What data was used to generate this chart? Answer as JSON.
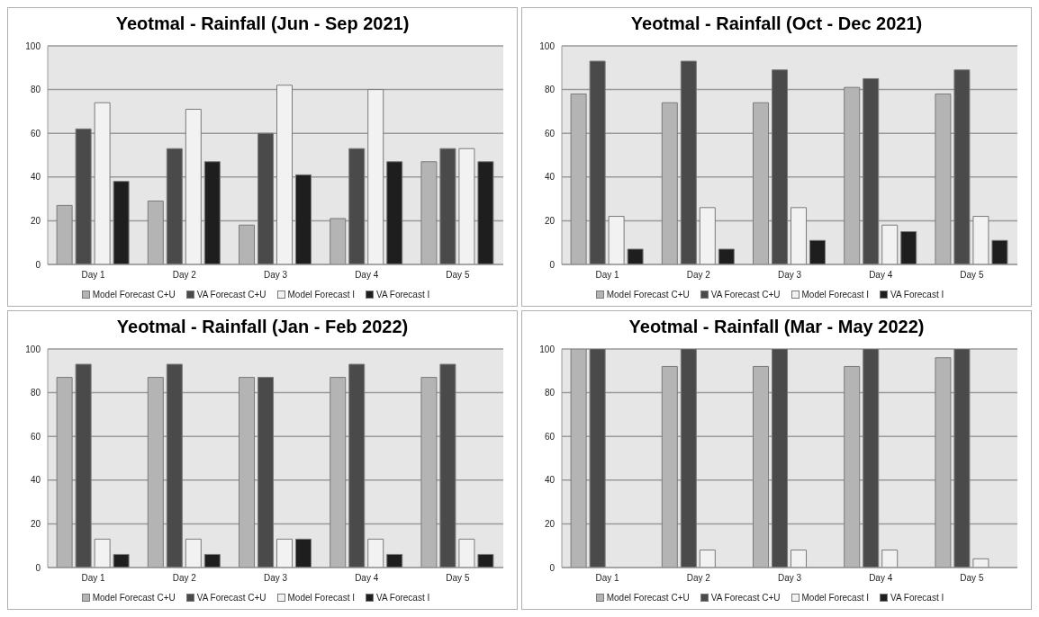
{
  "chart_data": [
    {
      "type": "bar",
      "title": "Yeotmal - Rainfall (Jun - Sep 2021)",
      "categories": [
        "Day 1",
        "Day 2",
        "Day 3",
        "Day 4",
        "Day 5"
      ],
      "series": [
        {
          "name": "Model Forecast C+U",
          "color": "#b4b4b4",
          "values": [
            27,
            29,
            18,
            21,
            47
          ]
        },
        {
          "name": "VA Forecast C+U",
          "color": "#4a4a4a",
          "values": [
            62,
            53,
            60,
            53,
            53
          ]
        },
        {
          "name": "Model Forecast I",
          "color": "#f2f2f2",
          "values": [
            74,
            71,
            82,
            80,
            53
          ]
        },
        {
          "name": "VA Forecast I",
          "color": "#1e1e1e",
          "values": [
            38,
            47,
            41,
            47,
            47
          ]
        }
      ],
      "ylim": [
        0,
        100
      ],
      "yticks": [
        0,
        20,
        40,
        60,
        80,
        100
      ],
      "grid": "y",
      "legend": "bottom"
    },
    {
      "type": "bar",
      "title": "Yeotmal - Rainfall (Oct - Dec 2021)",
      "categories": [
        "Day 1",
        "Day 2",
        "Day 3",
        "Day 4",
        "Day 5"
      ],
      "series": [
        {
          "name": "Model Forecast C+U",
          "color": "#b4b4b4",
          "values": [
            78,
            74,
            74,
            81,
            78
          ]
        },
        {
          "name": "VA Forecast C+U",
          "color": "#4a4a4a",
          "values": [
            93,
            93,
            89,
            85,
            89
          ]
        },
        {
          "name": "Model Forecast I",
          "color": "#f2f2f2",
          "values": [
            22,
            26,
            26,
            18,
            22
          ]
        },
        {
          "name": "VA Forecast I",
          "color": "#1e1e1e",
          "values": [
            7,
            7,
            11,
            15,
            11
          ]
        }
      ],
      "ylim": [
        0,
        100
      ],
      "yticks": [
        0,
        20,
        40,
        60,
        80,
        100
      ],
      "grid": "y",
      "legend": "bottom"
    },
    {
      "type": "bar",
      "title": "Yeotmal - Rainfall (Jan - Feb 2022)",
      "categories": [
        "Day 1",
        "Day 2",
        "Day 3",
        "Day 4",
        "Day 5"
      ],
      "series": [
        {
          "name": "Model Forecast C+U",
          "color": "#b4b4b4",
          "values": [
            87,
            87,
            87,
            87,
            87
          ]
        },
        {
          "name": "VA Forecast C+U",
          "color": "#4a4a4a",
          "values": [
            93,
            93,
            87,
            93,
            93
          ]
        },
        {
          "name": "Model Forecast I",
          "color": "#f2f2f2",
          "values": [
            13,
            13,
            13,
            13,
            13
          ]
        },
        {
          "name": "VA Forecast I",
          "color": "#1e1e1e",
          "values": [
            6,
            6,
            13,
            6,
            6
          ]
        }
      ],
      "ylim": [
        0,
        100
      ],
      "yticks": [
        0,
        20,
        40,
        60,
        80,
        100
      ],
      "grid": "y",
      "legend": "bottom"
    },
    {
      "type": "bar",
      "title": "Yeotmal - Rainfall (Mar - May 2022)",
      "categories": [
        "Day 1",
        "Day 2",
        "Day 3",
        "Day 4",
        "Day 5"
      ],
      "series": [
        {
          "name": "Model Forecast C+U",
          "color": "#b4b4b4",
          "values": [
            100,
            92,
            92,
            92,
            96
          ]
        },
        {
          "name": "VA Forecast C+U",
          "color": "#4a4a4a",
          "values": [
            100,
            100,
            100,
            100,
            100
          ]
        },
        {
          "name": "Model Forecast I",
          "color": "#f2f2f2",
          "values": [
            0,
            8,
            8,
            8,
            4
          ]
        },
        {
          "name": "VA Forecast I",
          "color": "#1e1e1e",
          "values": [
            0,
            0,
            0,
            0,
            0
          ]
        }
      ],
      "ylim": [
        0,
        100
      ],
      "yticks": [
        0,
        20,
        40,
        60,
        80,
        100
      ],
      "grid": "y",
      "legend": "bottom"
    }
  ]
}
